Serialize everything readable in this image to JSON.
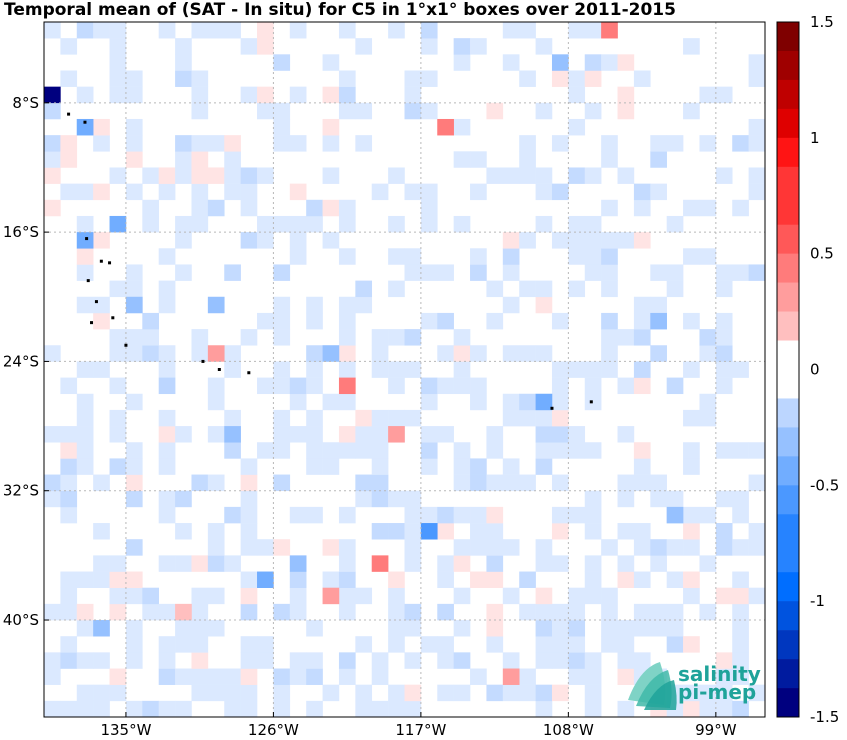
{
  "title": "Temporal mean of (SAT - In situ) for C5 in 1°x1° boxes over 2011-2015",
  "map": {
    "lon_range": [
      -140,
      -96
    ],
    "lat_range": [
      -46,
      -3
    ],
    "lon_ticks": [
      {
        "value": -135,
        "label": "135°W"
      },
      {
        "value": -126,
        "label": "126°W"
      },
      {
        "value": -117,
        "label": "117°W"
      },
      {
        "value": -108,
        "label": "108°W"
      },
      {
        "value": -99,
        "label": "99°W"
      }
    ],
    "lat_ticks": [
      {
        "value": -8,
        "label": "8°S"
      },
      {
        "value": -16,
        "label": "16°S"
      },
      {
        "value": -24,
        "label": "24°S"
      },
      {
        "value": -32,
        "label": "32°S"
      },
      {
        "value": -40,
        "label": "40°S"
      }
    ],
    "grid": true
  },
  "colorbar": {
    "min": -1.5,
    "max": 1.5,
    "ticks": [
      {
        "value": 1.5,
        "label": "1.5"
      },
      {
        "value": 1,
        "label": "1"
      },
      {
        "value": 0.5,
        "label": "0.5"
      },
      {
        "value": 0,
        "label": "0"
      },
      {
        "value": -0.5,
        "label": "-0.5"
      },
      {
        "value": -1,
        "label": "-1"
      },
      {
        "value": -1.5,
        "label": "-1.5"
      }
    ],
    "negative_color": "#00007f",
    "positive_color": "#7f0000",
    "neutral_color": "#ffffff"
  },
  "logo": {
    "line1": "salinity",
    "line2": "pi-mep",
    "color": "#1fa39a"
  },
  "chart_data": {
    "type": "heatmap",
    "cells": [
      {
        "lon": -139.5,
        "lat": -7.5,
        "value": -1.5
      },
      {
        "lon": -137.5,
        "lat": -9.5,
        "value": -0.45
      },
      {
        "lon": -137.5,
        "lat": -16.5,
        "value": -0.45
      },
      {
        "lon": -135.5,
        "lat": -15.5,
        "value": -0.4
      },
      {
        "lon": -134.5,
        "lat": -20.5,
        "value": -0.35
      },
      {
        "lon": -132.5,
        "lat": -25.5,
        "value": -0.2
      },
      {
        "lon": -129.5,
        "lat": -20.5,
        "value": -0.35
      },
      {
        "lon": -128.5,
        "lat": -28.5,
        "value": -0.35
      },
      {
        "lon": -126.5,
        "lat": -37.5,
        "value": -0.5
      },
      {
        "lon": -124.5,
        "lat": -36.5,
        "value": -0.3
      },
      {
        "lon": -122.5,
        "lat": -23.5,
        "value": -0.35
      },
      {
        "lon": -121.5,
        "lat": -25.5,
        "value": 0.4
      },
      {
        "lon": -119.5,
        "lat": -36.5,
        "value": 0.4
      },
      {
        "lon": -116.5,
        "lat": -34.5,
        "value": -0.55
      },
      {
        "lon": -115.5,
        "lat": -9.5,
        "value": 0.4
      },
      {
        "lon": -109.5,
        "lat": -26.5,
        "value": -0.45
      },
      {
        "lon": -108.5,
        "lat": -5.5,
        "value": -0.3
      },
      {
        "lon": -105.5,
        "lat": -3.5,
        "value": 0.45
      },
      {
        "lon": -102.5,
        "lat": -21.5,
        "value": -0.35
      },
      {
        "lon": -101.5,
        "lat": -33.5,
        "value": -0.35
      },
      {
        "lon": -129.5,
        "lat": -23.5,
        "value": 0.35
      },
      {
        "lon": -118.5,
        "lat": -28.5,
        "value": 0.3
      },
      {
        "lon": -111.5,
        "lat": -43.5,
        "value": 0.3
      },
      {
        "lon": -122.5,
        "lat": -38.5,
        "value": 0.3
      },
      {
        "lon": -131.5,
        "lat": -39.5,
        "value": 0.2
      },
      {
        "lon": -136.5,
        "lat": -40.5,
        "value": -0.3
      }
    ]
  }
}
